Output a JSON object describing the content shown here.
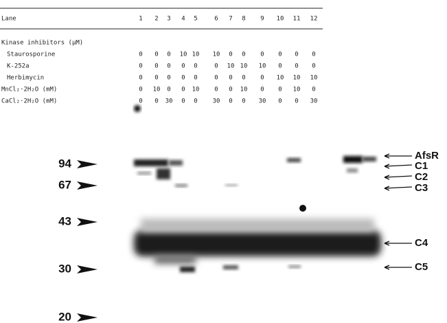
{
  "table": {
    "header": {
      "label": "Lane",
      "lanes": [
        "1",
        "2",
        "3",
        "4",
        "5",
        "6",
        "7",
        "8",
        "9",
        "10",
        "11",
        "12"
      ]
    },
    "section": "Kinase inhibitors (µM)",
    "rows": [
      {
        "label": "Staurosporine",
        "values": [
          "0",
          "0",
          "0",
          "10",
          "10",
          "10",
          "0",
          "0",
          "0",
          "0",
          "0",
          "0"
        ]
      },
      {
        "label": "K-252a",
        "values": [
          "0",
          "0",
          "0",
          "0",
          "0",
          "0",
          "10",
          "10",
          "10",
          "0",
          "0",
          "0"
        ]
      },
      {
        "label": "Herbimycin",
        "values": [
          "0",
          "0",
          "0",
          "0",
          "0",
          "0",
          "0",
          "0",
          "0",
          "10",
          "10",
          "10"
        ]
      },
      {
        "label": "MnCl₂·2H₂O (mM)",
        "values": [
          "0",
          "10",
          "0",
          "0",
          "10",
          "0",
          "0",
          "10",
          "0",
          "0",
          "10",
          "0"
        ]
      },
      {
        "label": "CaCl₂·2H₂O (mM)",
        "values": [
          "0",
          "0",
          "30",
          "0",
          "0",
          "30",
          "0",
          "0",
          "30",
          "0",
          "0",
          "30"
        ]
      }
    ]
  },
  "gel": {
    "markers": [
      "94",
      "67",
      "43",
      "30",
      "20"
    ],
    "bands": [
      "AfsR",
      "C1",
      "C2",
      "C3",
      "C4",
      "C5"
    ]
  }
}
